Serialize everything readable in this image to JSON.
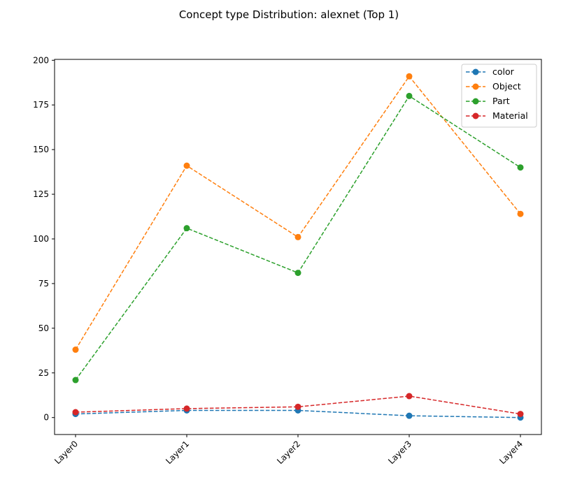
{
  "chart_data": {
    "type": "line",
    "title": "Concept type Distribution: alexnet (Top 1)",
    "xlabel": "",
    "ylabel": "",
    "categories": [
      "Layer0",
      "Layer1",
      "Layer2",
      "Layer3",
      "Layer4"
    ],
    "ylim": [
      -9.5,
      200.5
    ],
    "yticks": [
      0,
      25,
      50,
      75,
      100,
      125,
      150,
      175,
      200
    ],
    "grid": false,
    "legend_position": "top-right",
    "line_style": "dashed",
    "marker": "circle",
    "series": [
      {
        "name": "color",
        "color": "#1f77b4",
        "values": [
          2,
          4,
          4,
          1,
          0
        ]
      },
      {
        "name": "Object",
        "color": "#ff7f0e",
        "values": [
          38,
          141,
          101,
          191,
          114
        ]
      },
      {
        "name": "Part",
        "color": "#2ca02c",
        "values": [
          21,
          106,
          81,
          180,
          140
        ]
      },
      {
        "name": "Material",
        "color": "#d62728",
        "values": [
          3,
          5,
          6,
          12,
          2
        ]
      }
    ]
  }
}
